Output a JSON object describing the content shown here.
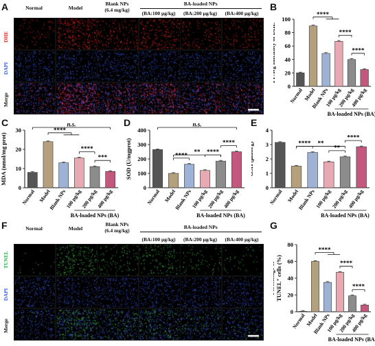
{
  "panels": {
    "A": "A",
    "B": "B",
    "C": "C",
    "D": "D",
    "E": "E",
    "F": "F",
    "G": "G"
  },
  "micro_A": {
    "columns": [
      "Normal",
      "Model",
      "Blank NPs\n(6.4 mg/kg)",
      "(BA:100 μg/kg)",
      "(BA:200 μg/kg)",
      "(BA:400 μg/kg)"
    ],
    "group_header": "BA-loaded NPs",
    "rows": [
      "DHE",
      "DAPI",
      "Merge"
    ],
    "row_colors": [
      "#d62a2a",
      "#3a5bd8",
      "#111111"
    ]
  },
  "micro_F": {
    "columns": [
      "Normal",
      "Model",
      "Blank NPs\n(6.4 mg/kg)",
      "(BA:100 μg/kg)",
      "(BA:200 μg/kg)",
      "(BA:400 μg/kg)"
    ],
    "group_header": "BA-loaded NPs",
    "rows": [
      "TUNEL",
      "DAPI",
      "Merge"
    ],
    "row_colors": [
      "#2fa84a",
      "#3a5bd8",
      "#111111"
    ]
  },
  "bar_colors": [
    "#555555",
    "#b5a07e",
    "#9eb2d6",
    "#e7a9b2",
    "#8c8c8c",
    "#c2587d"
  ],
  "chart_data": [
    {
      "id": "B",
      "type": "bar",
      "categories": [
        "Normal",
        "Model",
        "Blank NPs",
        "100 μg/kg",
        "200 μg/kg",
        "400 μg/kg"
      ],
      "values": [
        20,
        90,
        49,
        67,
        40,
        25
      ],
      "ylabel": "FI Avg Intensity of DHE",
      "ylim": [
        0,
        100
      ],
      "yticks": [
        0,
        20,
        40,
        60,
        80,
        100
      ],
      "group_label": "BA-loaded NPs (BA)",
      "sig": [
        {
          "type": "bracket3",
          "from": 1,
          "to": [
            2,
            3
          ],
          "label": "****"
        },
        {
          "type": "pair",
          "from": 3,
          "to": 4,
          "label": "****"
        },
        {
          "type": "pair",
          "from": 4,
          "to": 5,
          "label": "****"
        }
      ]
    },
    {
      "id": "C",
      "type": "bar",
      "categories": [
        "Normal",
        "Model",
        "Blank NPs",
        "100 μg/kg",
        "200 μg/kg",
        "400 μg/kg"
      ],
      "values": [
        8,
        24,
        13,
        15.5,
        11,
        8.5
      ],
      "ylabel": "MDA (nmol/mg prot)",
      "ylim": [
        0,
        30
      ],
      "yticks": [
        0,
        10,
        20,
        30
      ],
      "group_label": "BA-loaded NPs (BA)",
      "sig": [
        {
          "type": "wide",
          "from": 0,
          "to": 5,
          "label": "n.s."
        },
        {
          "type": "bracket3",
          "from": 1,
          "to": [
            2,
            3
          ],
          "label": "****"
        },
        {
          "type": "pair",
          "from": 3,
          "to": 4,
          "label": "****"
        },
        {
          "type": "pair",
          "from": 4,
          "to": 5,
          "label": "***"
        }
      ]
    },
    {
      "id": "D",
      "type": "bar",
      "categories": [
        "Normal",
        "Model",
        "Blank NPs",
        "100 μg/kg",
        "200 μg/kg",
        "400 μg/kg"
      ],
      "values": [
        265,
        100,
        163,
        120,
        185,
        250
      ],
      "ylabel": "SOD (U/mgprot)",
      "ylim": [
        0,
        400
      ],
      "yticks": [
        0,
        100,
        200,
        300,
        400
      ],
      "group_label": "BA-loaded NPs (BA)",
      "sig": [
        {
          "type": "wide",
          "from": 0,
          "to": 5,
          "label": "n.s."
        },
        {
          "type": "pair",
          "from": 1,
          "to": 4,
          "label": "**"
        },
        {
          "type": "pair",
          "from": 1,
          "to": 2,
          "label": "****"
        },
        {
          "type": "pair",
          "from": 3,
          "to": 4,
          "label": "****"
        },
        {
          "type": "pair",
          "from": 4,
          "to": 5,
          "label": "****"
        }
      ]
    },
    {
      "id": "E",
      "type": "bar",
      "categories": [
        "Normal",
        "Model",
        "Blank NPs",
        "100 μg/kg",
        "200 μg/kg",
        "400 μg/kg"
      ],
      "values": [
        3.15,
        1.5,
        2.45,
        1.8,
        2.15,
        2.85
      ],
      "ylabel": "GSH (μmol/g)",
      "ylim": [
        0,
        4
      ],
      "yticks": [
        0,
        1,
        2,
        3,
        4
      ],
      "group_label": "BA-loaded NPs (BA)",
      "sig": [
        {
          "type": "pair",
          "from": 1,
          "to": 4,
          "label": "**"
        },
        {
          "type": "pair",
          "from": 1,
          "to": 2,
          "label": "****"
        },
        {
          "type": "pair",
          "from": 3,
          "to": 4,
          "label": "**"
        },
        {
          "type": "pair",
          "from": 4,
          "to": 5,
          "label": "****"
        }
      ]
    },
    {
      "id": "G",
      "type": "bar",
      "categories": [
        "Normal",
        "Model",
        "Blank NPs",
        "100 μg/kg",
        "200 μg/kg",
        "400 μg/kg"
      ],
      "values": [
        0.5,
        60,
        35,
        47,
        19,
        8
      ],
      "ylabel": "Percentage of\nTUNEL⁺ cells (%)",
      "ylim": [
        0,
        80
      ],
      "yticks": [
        0,
        20,
        40,
        60,
        80
      ],
      "group_label": "BA-loaded NPs (BA)",
      "sig": [
        {
          "type": "bracket3",
          "from": 1,
          "to": [
            2,
            3
          ],
          "label": "****"
        },
        {
          "type": "pair",
          "from": 3,
          "to": 4,
          "label": "****"
        },
        {
          "type": "pair",
          "from": 4,
          "to": 5,
          "label": "****"
        }
      ]
    }
  ]
}
